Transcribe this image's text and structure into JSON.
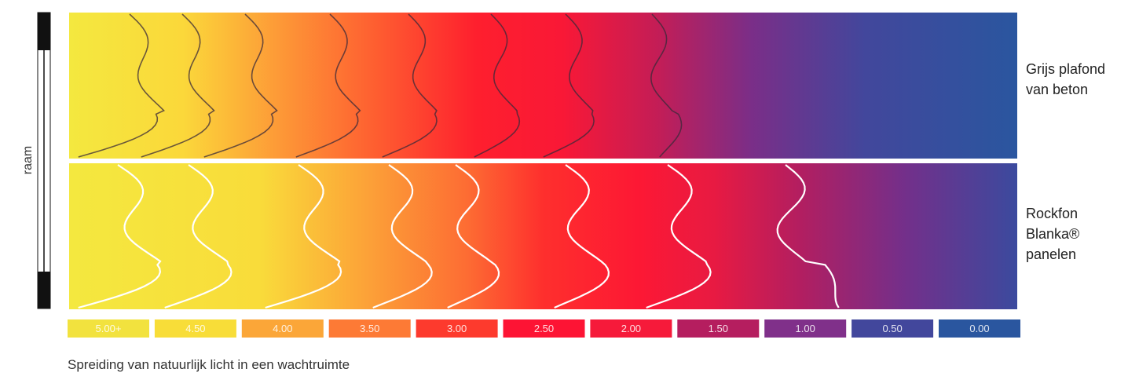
{
  "window_label": "raam",
  "caption": "Spreiding van natuurlijk licht in een wachtruimte",
  "colors": {
    "c500": "#f2e23e",
    "c450": "#f8dd38",
    "c400": "#fba638",
    "c350": "#fd7a35",
    "c300": "#fd3a2d",
    "c250": "#fd1434",
    "c200": "#f61a3a",
    "c150": "#b51e5f",
    "c100": "#80308a",
    "c050": "#42479c",
    "c000": "#2a569f"
  },
  "chart_data": {
    "type": "heatmap",
    "title": "",
    "legend": {
      "placement": "bottom",
      "entries": [
        "5.00+",
        "4.50",
        "4.00",
        "3.50",
        "3.00",
        "2.50",
        "2.00",
        "1.50",
        "1.00",
        "0.50",
        "0.00"
      ],
      "values": [
        5.0,
        4.5,
        4.0,
        3.5,
        3.0,
        2.5,
        2.0,
        1.5,
        1.0,
        0.5,
        0.0
      ]
    },
    "panels": [
      {
        "label_lines": [
          "Grijs plafond",
          "van beton"
        ],
        "contour_color": "#3a2a3a",
        "contour_levels": [
          4.5,
          4.0,
          3.5,
          3.0,
          2.5,
          2.0,
          1.5,
          1.0
        ]
      },
      {
        "label_lines": [
          "Rockfon",
          "Blanka®",
          "panelen"
        ],
        "contour_color": "#ffffff",
        "contour_levels": [
          4.5,
          4.0,
          3.5,
          3.0,
          2.5,
          2.0,
          1.5,
          1.0
        ]
      }
    ]
  }
}
